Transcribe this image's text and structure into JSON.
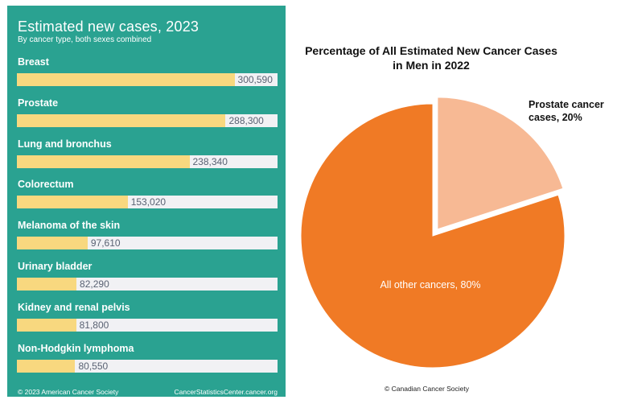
{
  "left_chart": {
    "title": "Estimated new cases, 2023",
    "subtitle": "By cancer type, both sexes combined",
    "footer_left": "© 2023 American Cancer Society",
    "footer_right": "CancerStatisticsCenter.cancer.org"
  },
  "right_chart": {
    "title_line1": "Percentage of All Estimated New Cancer Cases",
    "title_line2": "in Men in 2022",
    "copyright": "© Canadian Cancer Society"
  },
  "colors": {
    "panel_bg": "#2aa291",
    "bar_fill": "#f8d87f",
    "bar_track": "#f1f1f4",
    "pie_main": "#f07a25",
    "pie_exploded": "#f7b994"
  },
  "chart_data": [
    {
      "type": "bar",
      "title": "Estimated new cases, 2023",
      "subtitle": "By cancer type, both sexes combined",
      "categories": [
        "Breast",
        "Prostate",
        "Lung and bronchus",
        "Colorectum",
        "Melanoma of the skin",
        "Urinary bladder",
        "Kidney and renal pelvis",
        "Non-Hodgkin lymphoma"
      ],
      "values": [
        300590,
        288300,
        238340,
        153020,
        97610,
        82290,
        81800,
        80550
      ],
      "value_labels": [
        "300,590",
        "288,300",
        "238,340",
        "153,020",
        "97,610",
        "82,290",
        "81,800",
        "80,550"
      ],
      "xlim": [
        0,
        360000
      ],
      "orientation": "horizontal"
    },
    {
      "type": "pie",
      "title": "Percentage of All Estimated New Cancer Cases in Men in 2022",
      "slices": [
        {
          "label": "Prostate cancer cases, 20%",
          "label_line1": "Prostate cancer",
          "label_line2": "cases, 20%",
          "value": 20,
          "exploded": true
        },
        {
          "label": "All other cancers, 80%",
          "value": 80,
          "exploded": false
        }
      ]
    }
  ]
}
